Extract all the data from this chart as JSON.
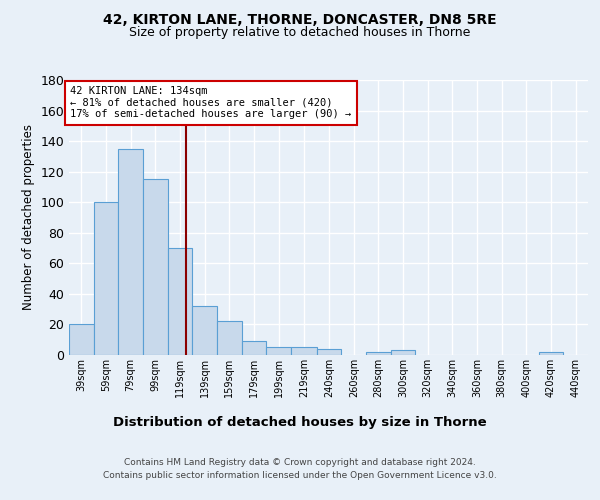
{
  "title1": "42, KIRTON LANE, THORNE, DONCASTER, DN8 5RE",
  "title2": "Size of property relative to detached houses in Thorne",
  "xlabel": "Distribution of detached houses by size in Thorne",
  "ylabel": "Number of detached properties",
  "footnote1": "Contains HM Land Registry data © Crown copyright and database right 2024.",
  "footnote2": "Contains public sector information licensed under the Open Government Licence v3.0.",
  "annotation_line1": "42 KIRTON LANE: 134sqm",
  "annotation_line2": "← 81% of detached houses are smaller (420)",
  "annotation_line3": "17% of semi-detached houses are larger (90) →",
  "bar_left_edges": [
    39,
    59,
    79,
    99,
    119,
    139,
    159,
    179,
    199,
    219,
    240,
    260,
    280,
    300,
    320,
    340,
    360,
    380,
    400,
    420,
    440
  ],
  "bar_widths": [
    20,
    20,
    20,
    20,
    20,
    20,
    20,
    20,
    20,
    21,
    20,
    20,
    20,
    20,
    20,
    20,
    20,
    20,
    20,
    20,
    20
  ],
  "bar_heights": [
    20,
    100,
    135,
    115,
    70,
    32,
    22,
    9,
    5,
    5,
    4,
    0,
    2,
    3,
    0,
    0,
    0,
    0,
    0,
    2,
    0
  ],
  "bar_color": "#c8d9eb",
  "bar_edge_color": "#5a9fd4",
  "vline_x": 134,
  "vline_color": "#8b0000",
  "ylim": [
    0,
    180
  ],
  "xlim": [
    39,
    460
  ],
  "yticks": [
    0,
    20,
    40,
    60,
    80,
    100,
    120,
    140,
    160,
    180
  ],
  "background_color": "#e8f0f8",
  "plot_bg_color": "#e8f0f8",
  "grid_color": "#ffffff",
  "title1_fontsize": 10,
  "title2_fontsize": 9,
  "annotation_box_color": "#ffffff",
  "annotation_box_edgecolor": "#cc0000"
}
